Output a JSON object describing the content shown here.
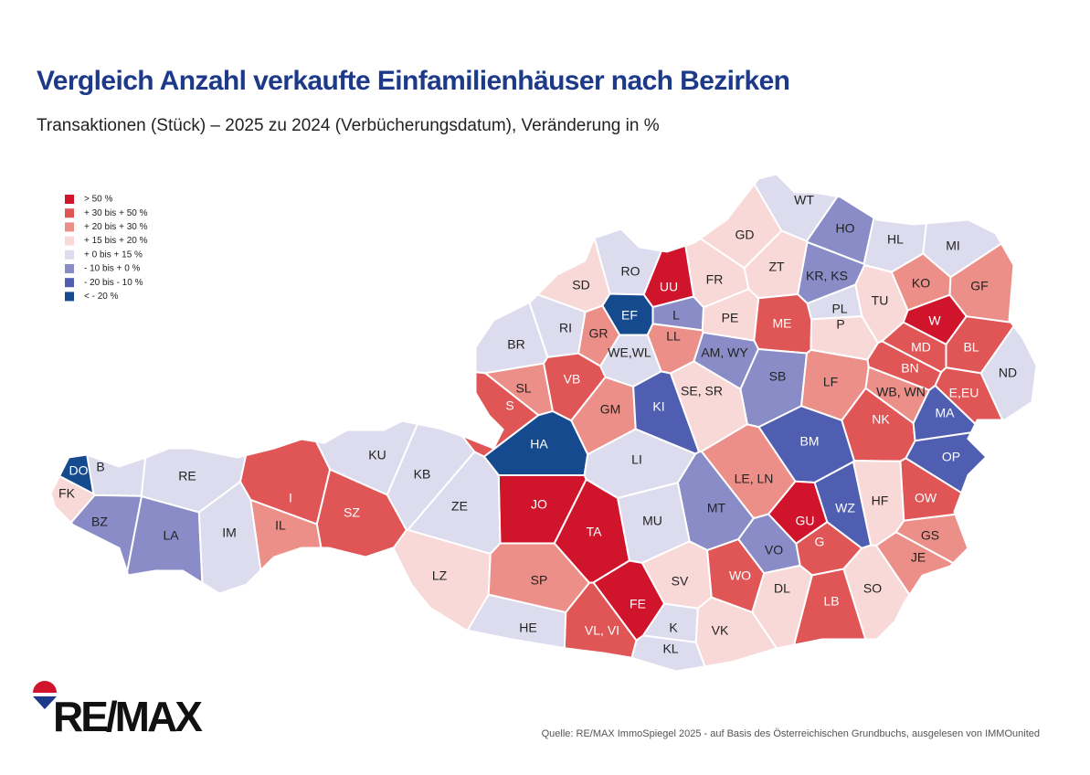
{
  "header": {
    "title": "Vergleich Anzahl verkaufte Einfamilienhäuser nach Bezirken",
    "subtitle": "Transaktionen (Stück) – 2025 zu 2024 (Verbücherungsdatum), Veränderung in %"
  },
  "legend": [
    {
      "label": "> 50 %",
      "color": "#d0142c"
    },
    {
      "label": "+ 30 bis + 50 %",
      "color": "#e05555"
    },
    {
      "label": "+ 20 bis + 30 %",
      "color": "#ec8f88"
    },
    {
      "label": "+ 15 bis + 20 %",
      "color": "#f8d9d8"
    },
    {
      "label": "+ 0 bis + 15 %",
      "color": "#dcdcee"
    },
    {
      "label": "- 10 bis + 0 %",
      "color": "#8a8cc8"
    },
    {
      "label": "- 20 bis - 10 %",
      "color": "#4f5eb0"
    },
    {
      "label": "< - 20 %",
      "color": "#164a8e"
    }
  ],
  "districts": [
    {
      "label": "WT",
      "color": "#dcdcee"
    },
    {
      "label": "HO",
      "color": "#8a8cc8"
    },
    {
      "label": "HL",
      "color": "#dcdcee"
    },
    {
      "label": "MI",
      "color": "#dcdcee"
    },
    {
      "label": "GD",
      "color": "#f8d9d8"
    },
    {
      "label": "ZT",
      "color": "#f8d9d8"
    },
    {
      "label": "KR, KS",
      "color": "#8a8cc8"
    },
    {
      "label": "FR",
      "color": "#f8d9d8"
    },
    {
      "label": "RO",
      "color": "#dcdcee"
    },
    {
      "label": "SD",
      "color": "#f8d9d8"
    },
    {
      "label": "UU",
      "color": "#d0142c"
    },
    {
      "label": "EF",
      "color": "#164a8e"
    },
    {
      "label": "L",
      "color": "#8a8cc8"
    },
    {
      "label": "PE",
      "color": "#f8d9d8"
    },
    {
      "label": "ME",
      "color": "#e05555"
    },
    {
      "label": "PL",
      "color": "#dcdcee"
    },
    {
      "label": "P",
      "color": "#f8d9d8"
    },
    {
      "label": "TU",
      "color": "#f8d9d8"
    },
    {
      "label": "KO",
      "color": "#ec8f88"
    },
    {
      "label": "GF",
      "color": "#ec8f88"
    },
    {
      "label": "W",
      "color": "#d0142c"
    },
    {
      "label": "MD",
      "color": "#e05555"
    },
    {
      "label": "BL",
      "color": "#e05555"
    },
    {
      "label": "BN",
      "color": "#e05555"
    },
    {
      "label": "ND",
      "color": "#dcdcee"
    },
    {
      "label": "RI",
      "color": "#dcdcee"
    },
    {
      "label": "GR",
      "color": "#ec8f88"
    },
    {
      "label": "LL",
      "color": "#ec8f88"
    },
    {
      "label": "WE,WL",
      "color": "#dcdcee"
    },
    {
      "label": "AM, WY",
      "color": "#8a8cc8"
    },
    {
      "label": "SB",
      "color": "#8a8cc8"
    },
    {
      "label": "LF",
      "color": "#ec8f88"
    },
    {
      "label": "WB, WN",
      "color": "#ec8f88"
    },
    {
      "label": "E,EU",
      "color": "#e05555"
    },
    {
      "label": "BR",
      "color": "#dcdcee"
    },
    {
      "label": "SL",
      "color": "#ec8f88"
    },
    {
      "label": "S",
      "color": "#e05555"
    },
    {
      "label": "VB",
      "color": "#e05555"
    },
    {
      "label": "GM",
      "color": "#ec8f88"
    },
    {
      "label": "KI",
      "color": "#4f5eb0"
    },
    {
      "label": "SE, SR",
      "color": "#f8d9d8"
    },
    {
      "label": "NK",
      "color": "#e05555"
    },
    {
      "label": "MA",
      "color": "#4f5eb0"
    },
    {
      "label": "HA",
      "color": "#164a8e"
    },
    {
      "label": "BM",
      "color": "#4f5eb0"
    },
    {
      "label": "LI",
      "color": "#dcdcee"
    },
    {
      "label": "OP",
      "color": "#4f5eb0"
    },
    {
      "label": "DO",
      "color": "#164a8e"
    },
    {
      "label": "B",
      "color": "#dcdcee"
    },
    {
      "label": "FK",
      "color": "#f8d9d8"
    },
    {
      "label": "KU",
      "color": "#dcdcee"
    },
    {
      "label": "KB",
      "color": "#dcdcee"
    },
    {
      "label": "RE",
      "color": "#dcdcee"
    },
    {
      "label": "LE, LN",
      "color": "#ec8f88"
    },
    {
      "label": "I",
      "color": "#e05555"
    },
    {
      "label": "JO",
      "color": "#d0142c"
    },
    {
      "label": "HF",
      "color": "#f8d9d8"
    },
    {
      "label": "OW",
      "color": "#e05555"
    },
    {
      "label": "WZ",
      "color": "#4f5eb0"
    },
    {
      "label": "MT",
      "color": "#8a8cc8"
    },
    {
      "label": "ZE",
      "color": "#dcdcee"
    },
    {
      "label": "SZ",
      "color": "#e05555"
    },
    {
      "label": "BZ",
      "color": "#8a8cc8"
    },
    {
      "label": "IL",
      "color": "#ec8f88"
    },
    {
      "label": "MU",
      "color": "#dcdcee"
    },
    {
      "label": "GU",
      "color": "#d0142c"
    },
    {
      "label": "G",
      "color": "#e05555"
    },
    {
      "label": "TA",
      "color": "#d0142c"
    },
    {
      "label": "LA",
      "color": "#8a8cc8"
    },
    {
      "label": "IM",
      "color": "#dcdcee"
    },
    {
      "label": "GS",
      "color": "#ec8f88"
    },
    {
      "label": "VO",
      "color": "#8a8cc8"
    },
    {
      "label": "JE",
      "color": "#ec8f88"
    },
    {
      "label": "LZ",
      "color": "#f8d9d8"
    },
    {
      "label": "SP",
      "color": "#ec8f88"
    },
    {
      "label": "SV",
      "color": "#f8d9d8"
    },
    {
      "label": "WO",
      "color": "#e05555"
    },
    {
      "label": "DL",
      "color": "#f8d9d8"
    },
    {
      "label": "SO",
      "color": "#f8d9d8"
    },
    {
      "label": "FE",
      "color": "#d0142c"
    },
    {
      "label": "LB",
      "color": "#e05555"
    },
    {
      "label": "VL, VI",
      "color": "#e05555"
    },
    {
      "label": "HE",
      "color": "#dcdcee"
    },
    {
      "label": "K",
      "color": "#dcdcee"
    },
    {
      "label": "VK",
      "color": "#f8d9d8"
    },
    {
      "label": "KL",
      "color": "#dcdcee"
    }
  ],
  "footer": {
    "logo": "RE/MAX",
    "source": "Quelle: RE/MAX ImmoSpiegel 2025 - auf Basis des Österreichischen Grundbuchs, ausgelesen von IMMOunited"
  }
}
